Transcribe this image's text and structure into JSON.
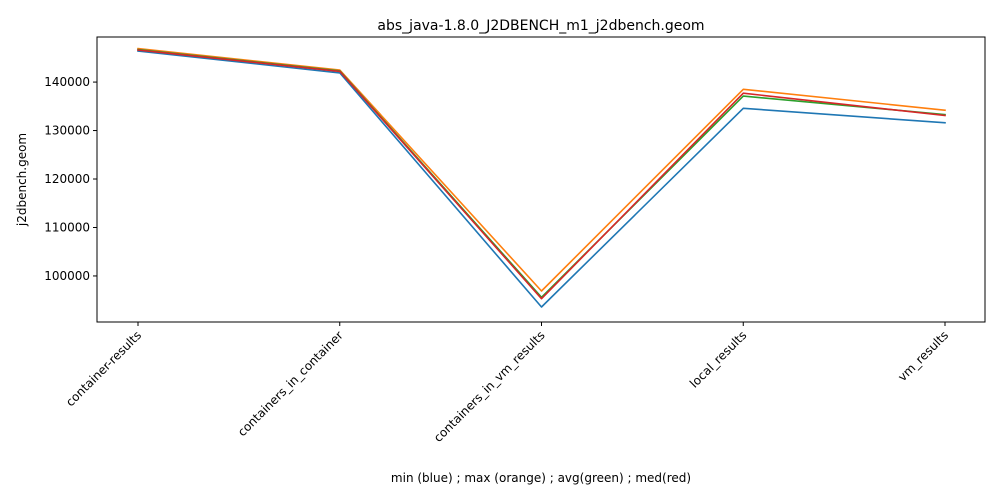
{
  "chart_data": {
    "type": "line",
    "title": "abs_java-1.8.0_J2DBENCH_m1_j2dbench.geom",
    "xlabel": "min (blue) ; max (orange) ; avg(green) ; med(red)",
    "ylabel": "j2dbench.geom",
    "categories": [
      "container-results",
      "containers_in_container",
      "containers_in_vm_results",
      "local_results",
      "vm_results"
    ],
    "ylim": [
      90500,
      149300
    ],
    "yticks": [
      100000,
      110000,
      120000,
      130000,
      140000
    ],
    "ytick_labels": [
      "100000",
      "110000",
      "120000",
      "130000",
      "140000"
    ],
    "grid": false,
    "series": [
      {
        "color": "#1f77b4",
        "values": [
          146400,
          141900,
          93600,
          134600,
          131600
        ]
      },
      {
        "color": "#ff7f0e",
        "values": [
          146900,
          142500,
          96900,
          138500,
          134200
        ]
      },
      {
        "color": "#2ca02c",
        "values": [
          146700,
          142300,
          95600,
          137100,
          133300
        ]
      },
      {
        "color": "#d62728",
        "values": [
          146600,
          142200,
          95300,
          137700,
          133100
        ]
      }
    ]
  }
}
